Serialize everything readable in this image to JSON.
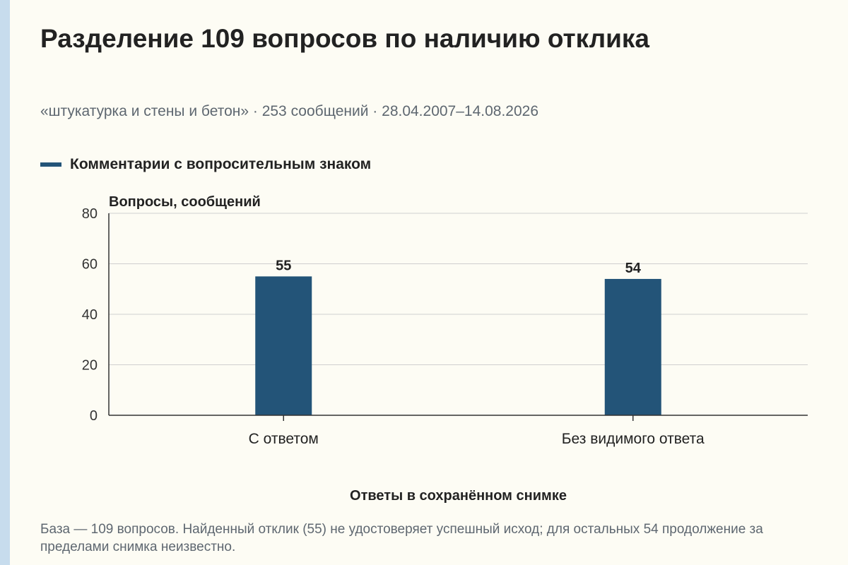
{
  "header": {
    "title": "Разделение 109 вопросов по наличию отклика",
    "subtitle": "«штукатурка и стены и бетон» · 253 сообщений · 28.04.2007–14.08.2026"
  },
  "legend": {
    "label": "Комментарии с вопросительным знаком",
    "color": "#235478"
  },
  "caption": "База — 109 вопросов. Найденный отклик (55) не удостоверяет успешный исход; для остальных 54 продолжение за пределами снимка неизвестно.",
  "chart_data": {
    "type": "bar",
    "categories": [
      "С ответом",
      "Без видимого ответа"
    ],
    "series": [
      {
        "name": "Комментарии с вопросительным знаком",
        "values": [
          55,
          54
        ],
        "color": "#235478"
      }
    ],
    "data_labels": [
      "55",
      "54"
    ],
    "ylabel": "Вопросы, сообщений",
    "xlabel": "Ответы в сохранённом снимке",
    "ylim": [
      0,
      80
    ],
    "yticks": [
      0,
      20,
      40,
      60,
      80
    ],
    "grid": true,
    "legend_position": "top-left"
  }
}
